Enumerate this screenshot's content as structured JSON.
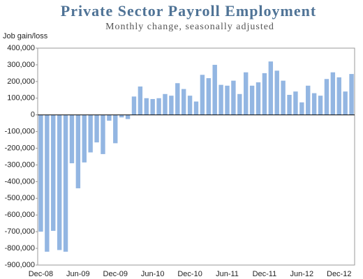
{
  "chart_data": {
    "type": "bar",
    "title": "Private Sector Payroll Employment",
    "subtitle": "Monthly change, seasonally adjusted",
    "ylabel": "Job gain/loss",
    "color": "#93b6e2",
    "categories": [
      "Dec-08",
      null,
      null,
      null,
      null,
      null,
      "Jun-09",
      null,
      null,
      null,
      null,
      null,
      "Dec-09",
      null,
      null,
      null,
      null,
      null,
      "Jun-10",
      null,
      null,
      null,
      null,
      null,
      "Dec-10",
      null,
      null,
      null,
      null,
      null,
      "Jun-11",
      null,
      null,
      null,
      null,
      null,
      "Dec-11",
      null,
      null,
      null,
      null,
      null,
      "Jun-12",
      null,
      null,
      null,
      null,
      null,
      "Dec-12",
      null,
      null
    ],
    "values": [
      -700000,
      -820000,
      -695000,
      -810000,
      -820000,
      -290000,
      -440000,
      -285000,
      -225000,
      -165000,
      -235000,
      -35000,
      -170000,
      -15000,
      -25000,
      110000,
      170000,
      100000,
      95000,
      100000,
      125000,
      115000,
      190000,
      155000,
      115000,
      80000,
      240000,
      220000,
      300000,
      180000,
      175000,
      205000,
      125000,
      255000,
      175000,
      195000,
      250000,
      320000,
      265000,
      205000,
      120000,
      140000,
      75000,
      175000,
      130000,
      115000,
      215000,
      255000,
      225000,
      140000,
      245000
    ],
    "ylim": [
      -900000,
      400000
    ],
    "yticks": [
      {
        "value": -900000,
        "label": "-900,000"
      },
      {
        "value": -800000,
        "label": "-800,000"
      },
      {
        "value": -700000,
        "label": "-700,000"
      },
      {
        "value": -600000,
        "label": "-600,000"
      },
      {
        "value": -500000,
        "label": "-500,000"
      },
      {
        "value": -400000,
        "label": "-400,000"
      },
      {
        "value": -300000,
        "label": "-300,000"
      },
      {
        "value": -200000,
        "label": "-200,000"
      },
      {
        "value": -100000,
        "label": "-100,000"
      },
      0,
      {
        "value": 100000,
        "label": "100,000"
      },
      {
        "value": 200000,
        "label": "200,000"
      },
      {
        "value": 300000,
        "label": "300,000"
      },
      {
        "value": 400000,
        "label": "400,000"
      }
    ],
    "grid": false
  }
}
